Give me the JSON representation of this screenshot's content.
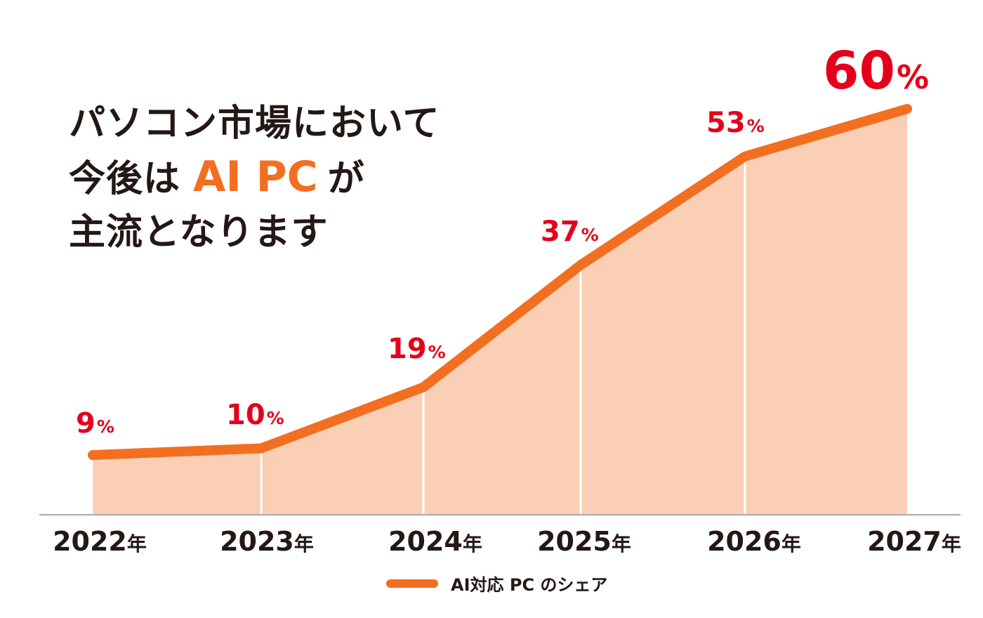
{
  "headline": {
    "line1": "パソコン市場において",
    "line2_prefix": "今後は",
    "line2_accent": "AI PC",
    "line2_suffix": "が",
    "line3": "主流となります"
  },
  "colors": {
    "line": "#f26f21",
    "area": "#fbcfb5",
    "value_text": "#e3001b",
    "axis_text": "#231815",
    "accent_text": "#f26f21"
  },
  "chart_data": {
    "type": "area",
    "categories": [
      "2022年",
      "2023年",
      "2024年",
      "2025年",
      "2026年",
      "2027年"
    ],
    "series": [
      {
        "name": "AI対応 PC のシェア",
        "values": [
          9,
          10,
          19,
          37,
          53,
          60
        ],
        "labels": [
          "9%",
          "10%",
          "19%",
          "37%",
          "53%",
          "60%"
        ]
      }
    ],
    "ylim": [
      0,
      70
    ],
    "grid": false,
    "legend": "bottom-center"
  }
}
